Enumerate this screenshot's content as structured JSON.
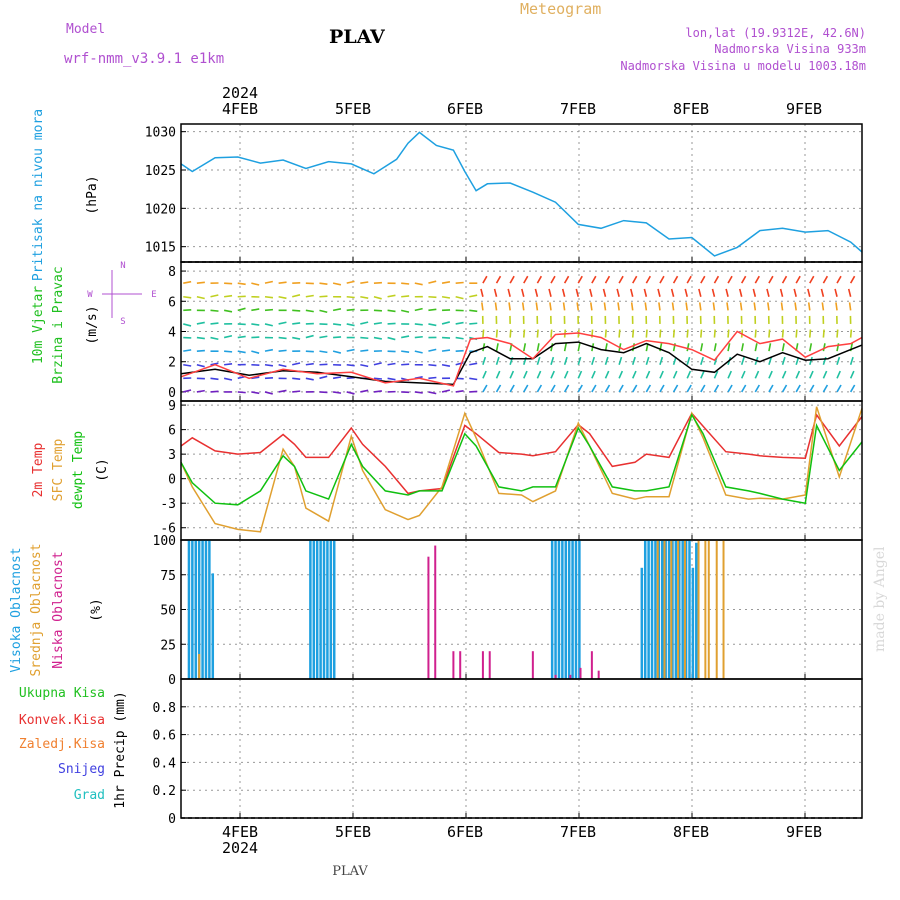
{
  "header": {
    "model_label": "Model",
    "model_name": "wrf-nmm_v3.9.1 e1km",
    "station": "PLAV",
    "meteogram_label": "Meteogram",
    "lonlat": "lon,lat (19.9312E, 42.6N)",
    "altitude": "Nadmorska Visina 933m",
    "model_altitude": "Nadmorska Visina u modelu 1003.18m",
    "bottom_station": "PLAV",
    "watermark": "made by Angel"
  },
  "axis": {
    "year": "2024",
    "days": [
      "4FEB",
      "5FEB",
      "6FEB",
      "7FEB",
      "8FEB",
      "9FEB"
    ]
  },
  "chart_data": [
    {
      "type": "line",
      "ylabel": [
        "Pritisak na nivou mora",
        "(hPa)"
      ],
      "ylim": [
        1013,
        1031
      ],
      "yticks": [
        1015,
        1020,
        1025,
        1030
      ],
      "x": [
        0,
        0.1,
        0.3,
        0.5,
        0.7,
        0.9,
        1.1,
        1.3,
        1.5,
        1.7,
        1.9,
        2.0,
        2.1,
        2.25,
        2.4,
        2.5,
        2.6,
        2.7,
        2.9,
        3.1,
        3.3,
        3.5,
        3.7,
        3.9,
        4.1,
        4.3,
        4.5,
        4.7,
        4.9,
        5.1,
        5.3,
        5.5,
        5.7,
        5.9,
        6.0
      ],
      "series": [
        {
          "color": "#1ea0e0",
          "values": [
            1025.8,
            1024.8,
            1026.6,
            1026.7,
            1025.9,
            1026.3,
            1025.2,
            1026.1,
            1025.8,
            1024.5,
            1026.4,
            1028.5,
            1029.9,
            1028.2,
            1027.6,
            1024.8,
            1022.3,
            1023.2,
            1023.3,
            1022.1,
            1020.8,
            1017.9,
            1017.4,
            1018.4,
            1018.1,
            1016.0,
            1016.2,
            1013.8,
            1014.9,
            1017.1,
            1017.4,
            1016.9,
            1017.1,
            1015.6,
            1014.3
          ]
        }
      ]
    },
    {
      "type": "line",
      "ylabel": [
        "10m Vjetar",
        "Brzina i Pravac",
        "(m/s)"
      ],
      "compass": [
        "N",
        "S",
        "W",
        "E"
      ],
      "ylim": [
        -0.6,
        8.6
      ],
      "yticks": [
        0,
        2,
        4,
        6,
        8
      ],
      "x": [
        0,
        0.3,
        0.6,
        0.9,
        1.2,
        1.5,
        1.8,
        2.1,
        2.4,
        2.55,
        2.7,
        2.9,
        3.1,
        3.3,
        3.5,
        3.7,
        3.9,
        4.1,
        4.3,
        4.5,
        4.7,
        4.9,
        5.1,
        5.3,
        5.5,
        5.7,
        5.9,
        6.0
      ],
      "series": [
        {
          "color": "#000000",
          "values": [
            1.2,
            1.5,
            1.1,
            1.4,
            1.3,
            1.0,
            0.7,
            0.6,
            0.5,
            2.6,
            3.0,
            2.2,
            2.2,
            3.2,
            3.3,
            2.8,
            2.6,
            3.2,
            2.6,
            1.5,
            1.3,
            2.5,
            2.0,
            2.6,
            2.1,
            2.2,
            2.8,
            3.1
          ]
        },
        {
          "color": "#ff4040",
          "values": [
            1.0,
            1.8,
            0.9,
            1.5,
            1.2,
            1.3,
            0.6,
            0.9,
            0.4,
            3.5,
            3.6,
            3.2,
            2.2,
            3.8,
            3.9,
            3.6,
            2.8,
            3.4,
            3.2,
            2.8,
            2.1,
            4.0,
            3.2,
            3.5,
            2.3,
            3.0,
            3.2,
            3.6
          ]
        }
      ]
    },
    {
      "type": "line",
      "ylabel": [
        "2m Temp",
        "SFC Temp",
        "dewpt Temp",
        "(C)"
      ],
      "ylim": [
        -7.5,
        9.5
      ],
      "yticks": [
        -6,
        -3,
        0,
        3,
        6,
        9
      ],
      "x": [
        0,
        0.1,
        0.3,
        0.5,
        0.7,
        0.9,
        1.0,
        1.1,
        1.3,
        1.5,
        1.6,
        1.8,
        2.0,
        2.1,
        2.3,
        2.5,
        2.6,
        2.8,
        3.0,
        3.1,
        3.3,
        3.5,
        3.6,
        3.8,
        4.0,
        4.1,
        4.3,
        4.5,
        4.6,
        4.8,
        5.0,
        5.1,
        5.3,
        5.5,
        5.6,
        5.8,
        6.0
      ],
      "series": [
        {
          "name": "2m Temp",
          "color": "#e83030",
          "values": [
            4.0,
            5.0,
            3.4,
            3.0,
            3.2,
            5.4,
            4.2,
            2.6,
            2.6,
            6.2,
            4.2,
            1.5,
            -1.8,
            -1.5,
            -1.2,
            6.5,
            5.5,
            3.2,
            3.0,
            2.8,
            3.3,
            6.6,
            5.5,
            1.5,
            2.0,
            3.0,
            2.6,
            8.0,
            6.4,
            3.3,
            3.0,
            2.8,
            2.6,
            2.5,
            7.8,
            4.0,
            7.6
          ]
        },
        {
          "name": "SFC Temp",
          "color": "#e0a030",
          "values": [
            2.0,
            -1.0,
            -5.5,
            -6.2,
            -6.5,
            3.6,
            1.5,
            -3.6,
            -5.2,
            5.2,
            1.0,
            -3.8,
            -5.0,
            -4.5,
            -1.0,
            8.0,
            5.0,
            -1.8,
            -2.0,
            -2.8,
            -1.5,
            6.8,
            4.0,
            -1.8,
            -2.5,
            -2.2,
            -2.2,
            8.0,
            5.0,
            -2.0,
            -2.5,
            -2.4,
            -2.5,
            -2.0,
            8.8,
            0.2,
            8.6
          ]
        },
        {
          "name": "dewpt Temp",
          "color": "#10c010",
          "values": [
            2.0,
            -0.5,
            -3.0,
            -3.2,
            -1.5,
            2.8,
            1.5,
            -1.5,
            -2.5,
            4.2,
            1.5,
            -1.5,
            -2.0,
            -1.5,
            -1.5,
            5.5,
            4.0,
            -1.0,
            -1.5,
            -1.0,
            -1.0,
            6.2,
            4.0,
            -1.0,
            -1.5,
            -1.5,
            -1.0,
            7.8,
            5.5,
            -1.0,
            -1.5,
            -1.8,
            -2.5,
            -3.0,
            6.5,
            1.0,
            4.5
          ]
        }
      ]
    },
    {
      "type": "bar",
      "ylabel": [
        "Visoka Oblacnost",
        "Srednja Oblacnost",
        "Niska Oblacnost",
        "(%)"
      ],
      "ylim": [
        0,
        100
      ],
      "yticks": [
        0,
        25,
        50,
        75,
        100
      ],
      "series": [
        {
          "name": "Visoka Oblacnost",
          "color": "#1ea0e0",
          "x": [
            0.07,
            0.1,
            0.13,
            0.16,
            0.19,
            0.22,
            0.25,
            0.28,
            1.14,
            1.17,
            1.2,
            1.23,
            1.26,
            1.29,
            1.32,
            1.35,
            3.27,
            3.3,
            3.33,
            3.36,
            3.39,
            3.42,
            3.45,
            3.48,
            3.51,
            4.06,
            4.09,
            4.12,
            4.15,
            4.18,
            4.21,
            4.24,
            4.27,
            4.3,
            4.33,
            4.36,
            4.39,
            4.42,
            4.45,
            4.48,
            4.51,
            4.54
          ],
          "values": [
            100,
            100,
            100,
            100,
            100,
            100,
            100,
            76,
            100,
            100,
            100,
            100,
            100,
            100,
            100,
            100,
            100,
            100,
            100,
            100,
            100,
            100,
            100,
            100,
            100,
            80,
            100,
            100,
            100,
            100,
            100,
            100,
            100,
            100,
            100,
            100,
            100,
            100,
            100,
            100,
            80,
            98
          ]
        },
        {
          "name": "Srednja Oblacnost",
          "color": "#e0a030",
          "x": [
            0.16,
            4.2,
            4.26,
            4.32,
            4.38,
            4.44,
            4.56,
            4.62,
            4.65,
            4.72,
            4.78
          ],
          "values": [
            18,
            100,
            100,
            100,
            100,
            100,
            100,
            100,
            100,
            100,
            100
          ]
        },
        {
          "name": "Niska Oblacnost",
          "color": "#d0208e",
          "x": [
            2.18,
            2.24,
            2.4,
            2.46,
            2.66,
            2.72,
            3.1,
            3.3,
            3.43,
            3.52,
            3.62,
            3.68
          ],
          "values": [
            88,
            96,
            20,
            20,
            20,
            20,
            20,
            3,
            3,
            8,
            20,
            6
          ]
        }
      ]
    },
    {
      "type": "bar",
      "ylabel": [
        "Ukupna Kisa",
        "Konvek.Kisa",
        "Zaledj.Kisa",
        "Snijeg",
        "Grad",
        "1hr Precip (mm)"
      ],
      "ylim": [
        0,
        1
      ],
      "yticks": [
        0,
        0.2,
        0.4,
        0.6,
        0.8
      ],
      "series": [
        {
          "name": "Ukupna Kisa",
          "color": "#20c020",
          "values": []
        },
        {
          "name": "Konvek.Kisa",
          "color": "#e83030",
          "values": []
        },
        {
          "name": "Zaledj.Kisa",
          "color": "#f08030",
          "values": []
        },
        {
          "name": "Snijeg",
          "color": "#4040e0",
          "values": []
        },
        {
          "name": "Grad",
          "color": "#20c0c0",
          "values": []
        }
      ]
    }
  ]
}
